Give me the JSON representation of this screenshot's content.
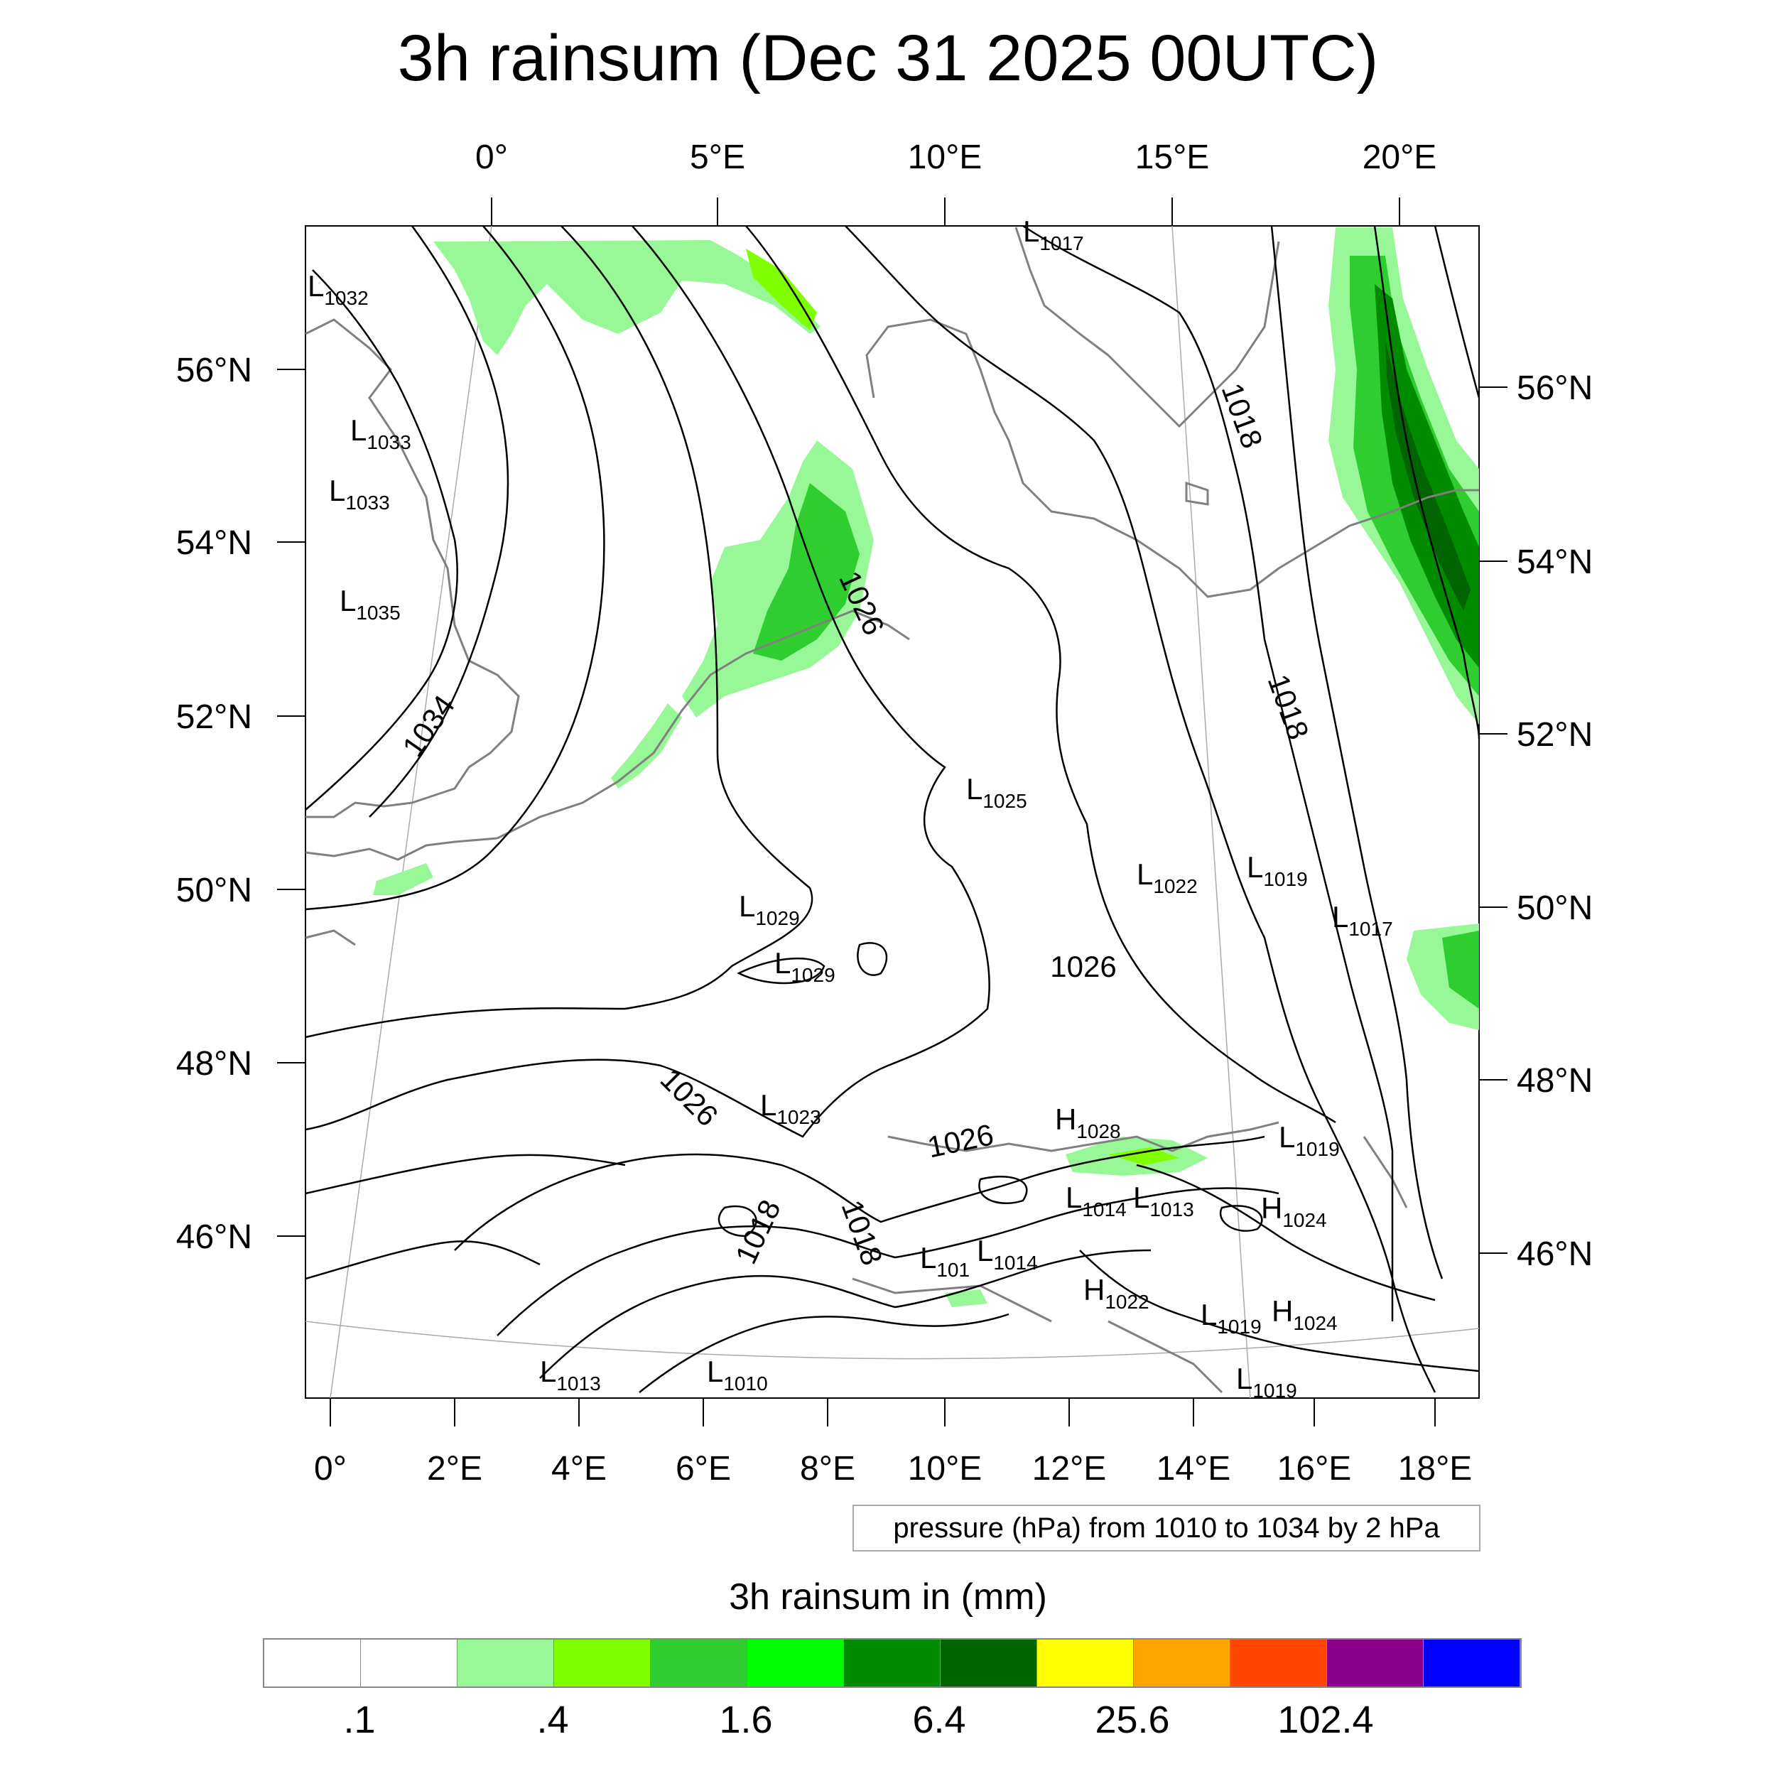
{
  "title": "3h rainsum (Dec 31 2025 00UTC)",
  "top_lon_labels": [
    "0°",
    "5°E",
    "10°E",
    "15°E",
    "20°E"
  ],
  "bottom_lon_labels": [
    "0°",
    "2°E",
    "4°E",
    "6°E",
    "8°E",
    "10°E",
    "12°E",
    "14°E",
    "16°E",
    "18°E"
  ],
  "left_lat_labels": [
    "56°N",
    "54°N",
    "52°N",
    "50°N",
    "48°N",
    "46°N"
  ],
  "right_lat_labels": [
    "56°N",
    "54°N",
    "52°N",
    "50°N",
    "48°N",
    "46°N"
  ],
  "contour_labels": [
    "1034",
    "1026",
    "1026",
    "1026",
    "1026",
    "1018",
    "1018",
    "1018",
    "1018"
  ],
  "pressure_centers": [
    {
      "type": "L",
      "value": "1032"
    },
    {
      "type": "L",
      "value": "1033"
    },
    {
      "type": "L",
      "value": "1033"
    },
    {
      "type": "L",
      "value": "1035"
    },
    {
      "type": "L",
      "value": "1017"
    },
    {
      "type": "L",
      "value": "1025"
    },
    {
      "type": "L",
      "value": "1022"
    },
    {
      "type": "L",
      "value": "1019"
    },
    {
      "type": "L",
      "value": "1017"
    },
    {
      "type": "L",
      "value": "1029"
    },
    {
      "type": "L",
      "value": "1029"
    },
    {
      "type": "L",
      "value": "1023"
    },
    {
      "type": "H",
      "value": "1028"
    },
    {
      "type": "L",
      "value": "1019"
    },
    {
      "type": "L",
      "value": "1014"
    },
    {
      "type": "L",
      "value": "1013"
    },
    {
      "type": "H",
      "value": "1024"
    },
    {
      "type": "L",
      "value": "101"
    },
    {
      "type": "L",
      "value": "1014"
    },
    {
      "type": "H",
      "value": "1022"
    },
    {
      "type": "L",
      "value": "1019"
    },
    {
      "type": "H",
      "value": "1024"
    },
    {
      "type": "L",
      "value": "1013"
    },
    {
      "type": "L",
      "value": "1010"
    },
    {
      "type": "L",
      "value": "1019"
    }
  ],
  "info_box": "pressure (hPa) from 1010 to 1034 by 2 hPa",
  "colorbar": {
    "title": "3h rainsum in (mm)",
    "colors": [
      "#ffffff",
      "#ffffff",
      "#98f898",
      "#80ff00",
      "#30cd30",
      "#00ff00",
      "#008b00",
      "#006400",
      "#ffff00",
      "#ffa500",
      "#ff4500",
      "#8b008b",
      "#0000ff"
    ],
    "labels": [
      ".1",
      ".4",
      "1.6",
      "6.4",
      "25.6",
      "102.4"
    ]
  },
  "styles": {
    "coast": "#808080",
    "contour": "#000000",
    "rain_light": "#98f898",
    "rain_mid": "#80ff00",
    "rain_green": "#30cd30",
    "rain_bright": "#00ff00",
    "rain_dark": "#008b00",
    "rain_darker": "#006400"
  }
}
